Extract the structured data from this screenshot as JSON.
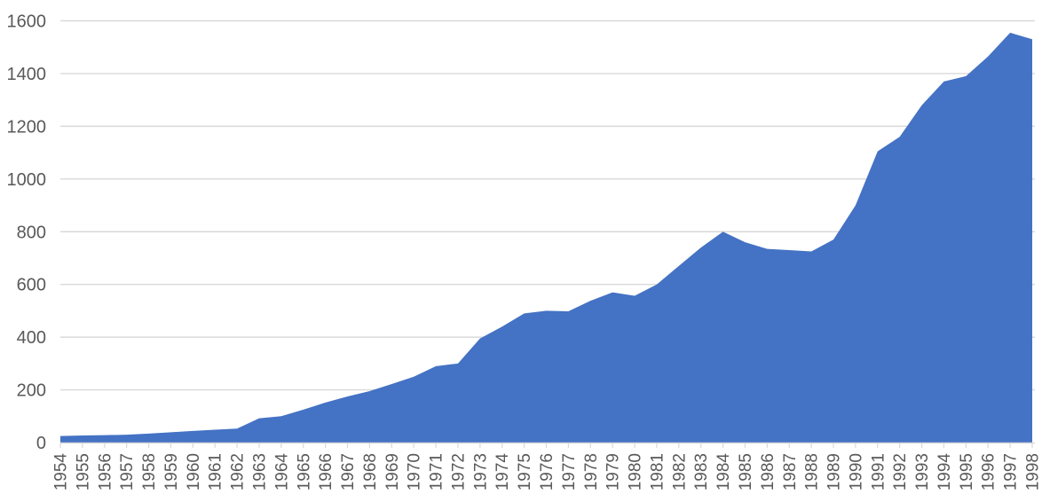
{
  "chart_data": {
    "type": "area",
    "title": "",
    "xlabel": "",
    "ylabel": "",
    "legend": false,
    "grid": true,
    "ylim": [
      0,
      1600
    ],
    "ytick_interval": 200,
    "yticks": [
      0,
      200,
      400,
      600,
      800,
      1000,
      1200,
      1400,
      1600
    ],
    "ytick_labels": [
      "0",
      "200",
      "400",
      "600",
      "800",
      "1000",
      "1200",
      "1400",
      "1600"
    ],
    "categories": [
      "1954",
      "1955",
      "1956",
      "1957",
      "1958",
      "1959",
      "1960",
      "1961",
      "1962",
      "1963",
      "1964",
      "1965",
      "1966",
      "1967",
      "1968",
      "1969",
      "1970",
      "1971",
      "1972",
      "1973",
      "1974",
      "1975",
      "1976",
      "1977",
      "1978",
      "1979",
      "1980",
      "1981",
      "1982",
      "1983",
      "1984",
      "1985",
      "1986",
      "1987",
      "1988",
      "1989",
      "1990",
      "1991",
      "1992",
      "1993",
      "1994",
      "1995",
      "1996",
      "1997",
      "1998"
    ],
    "values": [
      25,
      27,
      28,
      30,
      34,
      39,
      44,
      49,
      53,
      92,
      100,
      125,
      152,
      175,
      195,
      222,
      250,
      290,
      300,
      395,
      440,
      490,
      500,
      498,
      538,
      570,
      557,
      600,
      670,
      740,
      800,
      760,
      735,
      730,
      725,
      770,
      900,
      1105,
      1160,
      1280,
      1370,
      1390,
      1465,
      1555,
      1530
    ],
    "colors": {
      "area_fill": "#4472C4",
      "gridline": "#D9D9D9",
      "axis_line": "#D9D9D9",
      "tick_mark": "#D9D9D9",
      "tick_label": "#595959",
      "background": "#FFFFFF"
    },
    "legend_position": "none"
  }
}
